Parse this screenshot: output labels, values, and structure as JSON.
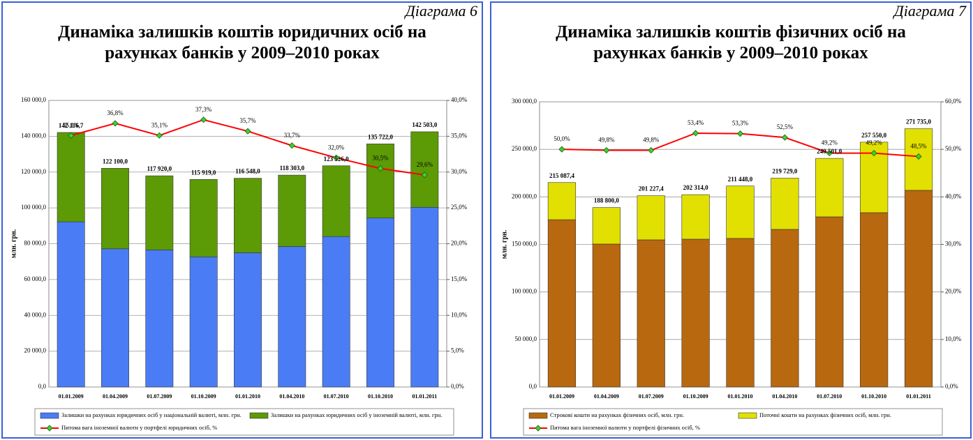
{
  "chart_data": [
    {
      "type": "bar",
      "stacked": true,
      "caption": "Діаграма 6",
      "title": [
        "Динаміка залишків коштів юридичних осіб на",
        "рахунках банків у 2009–2010 роках"
      ],
      "ylabel": "млн. грн.",
      "categories": [
        "01.01.2009",
        "01.04.2009",
        "01.07.2009",
        "01.10.2009",
        "01.01.2010",
        "01.04.2010",
        "01.07.2010",
        "01.10.2010",
        "01.01.2011"
      ],
      "series": [
        {
          "name": "Залишки на рахунках юридичних осіб у національній валюті, млн. грн.",
          "color": "#4a7cf5",
          "values": [
            92234,
            77167,
            76530,
            72681,
            74940,
            78435,
            83998,
            94327,
            100322
          ]
        },
        {
          "name": "Залишки на рахунках юридичних осіб у іноземній валюті, млн. грн.",
          "color": "#5c9a06",
          "values": [
            49883,
            44933,
            41390,
            43238,
            41608,
            39868,
            39528,
            41395,
            42181
          ]
        },
        {
          "name": "Питома вага іноземної валюти у портфелі юридичних осіб, %",
          "color": "#ff0000",
          "type": "line",
          "axis": "y2",
          "values": [
            35.1,
            36.8,
            35.1,
            37.3,
            35.7,
            33.7,
            32.0,
            30.5,
            29.6
          ],
          "value_labels": [
            "35,1%",
            "36,8%",
            "35,1%",
            "37,3%",
            "35,7%",
            "33,7%",
            "32,0%",
            "30,5%",
            "29,6%"
          ]
        }
      ],
      "totals": [
        142116.7,
        122100.0,
        117920.0,
        115919.0,
        116548.0,
        118303.0,
        123526.0,
        135722.0,
        142503.0
      ],
      "total_labels": [
        "142 116,7",
        "122 100,0",
        "117 920,0",
        "115 919,0",
        "116 548,0",
        "118 303,0",
        "123 526,0",
        "135 722,0",
        "142 503,0"
      ],
      "ylim": [
        0,
        160000
      ],
      "yticks": [
        {
          "value": 0,
          "label": "0,0"
        },
        {
          "value": 20000,
          "label": "20 000,0"
        },
        {
          "value": 40000,
          "label": "40 000,0"
        },
        {
          "value": 60000,
          "label": "60 000,0"
        },
        {
          "value": 80000,
          "label": "80 000,0"
        },
        {
          "value": 100000,
          "label": "100 000,0"
        },
        {
          "value": 120000,
          "label": "120 000,0"
        },
        {
          "value": 140000,
          "label": "140 000,0"
        },
        {
          "value": 160000,
          "label": "160 000,0"
        }
      ],
      "y2lim": [
        0,
        40
      ],
      "y2ticks": [
        {
          "value": 0,
          "label": "0,0%"
        },
        {
          "value": 5,
          "label": "5,0%"
        },
        {
          "value": 10,
          "label": "10,0%"
        },
        {
          "value": 15,
          "label": "15,0%"
        },
        {
          "value": 20,
          "label": "20,0%"
        },
        {
          "value": 25,
          "label": "25,0%"
        },
        {
          "value": 30,
          "label": "30,0%"
        },
        {
          "value": 35,
          "label": "35,0%"
        },
        {
          "value": 40,
          "label": "40,0%"
        }
      ],
      "grid": true,
      "legend": "bottom"
    },
    {
      "type": "bar",
      "stacked": true,
      "caption": "Діаграма 7",
      "title": [
        "Динаміка залишків коштів фізичних осіб на",
        "рахунках банків у 2009–2010 роках"
      ],
      "ylabel": "млн. грн.",
      "categories": [
        "01.01.2009",
        "01.04.2009",
        "01.07.2009",
        "01.10.2009",
        "01.01.2010",
        "01.04.2010",
        "01.07.2010",
        "01.10.2010",
        "01.01.2011"
      ],
      "series": [
        {
          "name": "Строкові кошти на рахунках фізичних осіб, млн. грн.",
          "color": "#b8680e",
          "values": [
            176000,
            150400,
            154800,
            155500,
            156300,
            165800,
            179000,
            183400,
            206900
          ]
        },
        {
          "name": "Поточні кошти на рахунках фізичних осіб, млн. грн.",
          "color": "#e2e000",
          "values": [
            39087,
            38400,
            46427,
            46814,
            55148,
            53929,
            61501,
            74150,
            64835
          ]
        },
        {
          "name": "Питома вага іноземної валюти у портфелі фізичних осіб, %",
          "color": "#ff0000",
          "type": "line",
          "axis": "y2",
          "values": [
            50.0,
            49.8,
            49.8,
            53.4,
            53.3,
            52.5,
            49.2,
            49.2,
            48.5
          ],
          "value_labels": [
            "50,0%",
            "49,8%",
            "49,8%",
            "53,4%",
            "53,3%",
            "52,5%",
            "49,2%",
            "49,2%",
            "48,5%"
          ]
        }
      ],
      "totals": [
        215087.4,
        188800.0,
        201227.4,
        202314.0,
        211448.0,
        219729.0,
        240501.0,
        257550.0,
        271735.0
      ],
      "total_labels": [
        "215 087,4",
        "188 800,0",
        "201 227,4",
        "202 314,0",
        "211 448,0",
        "219 729,0",
        "240 501,0",
        "257 550,0",
        "271 735,0"
      ],
      "ylim": [
        0,
        300000
      ],
      "yticks": [
        {
          "value": 0,
          "label": "0,0"
        },
        {
          "value": 50000,
          "label": "50 000,0"
        },
        {
          "value": 100000,
          "label": "100 000,0"
        },
        {
          "value": 150000,
          "label": "150 000,0"
        },
        {
          "value": 200000,
          "label": "200 000,0"
        },
        {
          "value": 250000,
          "label": "250 000,0"
        },
        {
          "value": 300000,
          "label": "300 000,0"
        }
      ],
      "y2lim": [
        0,
        60
      ],
      "y2ticks": [
        {
          "value": 0,
          "label": "0,0%"
        },
        {
          "value": 10,
          "label": "10,0%"
        },
        {
          "value": 20,
          "label": "20,0%"
        },
        {
          "value": 30,
          "label": "30,0%"
        },
        {
          "value": 40,
          "label": "40,0%"
        },
        {
          "value": 50,
          "label": "50,0%"
        },
        {
          "value": 60,
          "label": "60,0%"
        }
      ],
      "grid": true,
      "legend": "bottom"
    }
  ]
}
